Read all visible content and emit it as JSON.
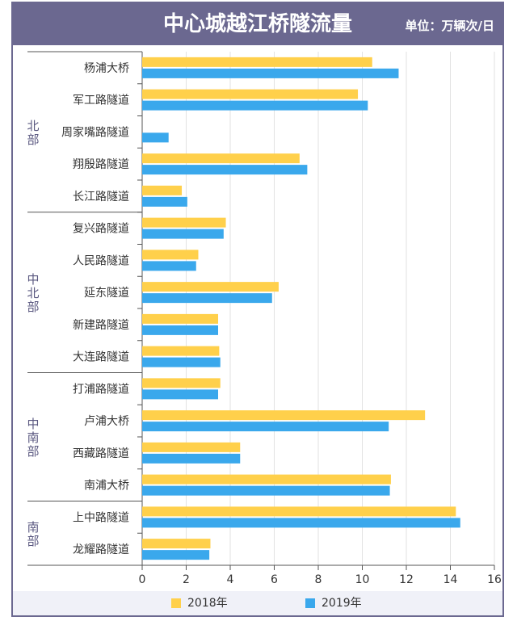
{
  "header": {
    "title": "中心城越江桥隧流量",
    "unit": "单位：万辆次/日"
  },
  "colors": {
    "header_bg": "#6b6890",
    "series_2018": "#FFD04B",
    "series_2019": "#3AA8EC"
  },
  "chart_data": {
    "type": "bar",
    "orientation": "horizontal",
    "title": "中心城越江桥隧流量",
    "unit": "单位：万辆次/日",
    "categories": [
      "杨浦大桥",
      "军工路隧道",
      "周家嘴路隧道",
      "翔殷路隧道",
      "长江路隧道",
      "复兴路隧道",
      "人民路隧道",
      "延东隧道",
      "新建路隧道",
      "大连路隧道",
      "打浦路隧道",
      "卢浦大桥",
      "西藏路隧道",
      "南浦大桥",
      "上中路隧道",
      "龙耀路隧道"
    ],
    "groups": [
      {
        "label": "北部",
        "start": 0,
        "end": 4
      },
      {
        "label": "中北部",
        "start": 5,
        "end": 9
      },
      {
        "label": "中南部",
        "start": 10,
        "end": 13
      },
      {
        "label": "南部",
        "start": 14,
        "end": 15
      }
    ],
    "series": [
      {
        "name": "2018年",
        "color": "#FFD04B",
        "values": [
          10.45,
          9.8,
          null,
          7.15,
          1.8,
          3.8,
          2.55,
          6.2,
          3.45,
          3.5,
          3.55,
          12.85,
          4.45,
          11.3,
          14.25,
          3.1
        ]
      },
      {
        "name": "2019年",
        "color": "#3AA8EC",
        "values": [
          11.65,
          10.25,
          1.2,
          7.5,
          2.05,
          3.7,
          2.45,
          5.9,
          3.45,
          3.55,
          3.45,
          11.2,
          4.45,
          11.25,
          14.45,
          3.05
        ]
      }
    ],
    "xlim": [
      0,
      16
    ],
    "xticks": [
      0,
      2,
      4,
      6,
      8,
      10,
      12,
      14,
      16
    ],
    "grid": true,
    "legend_position": "bottom"
  }
}
